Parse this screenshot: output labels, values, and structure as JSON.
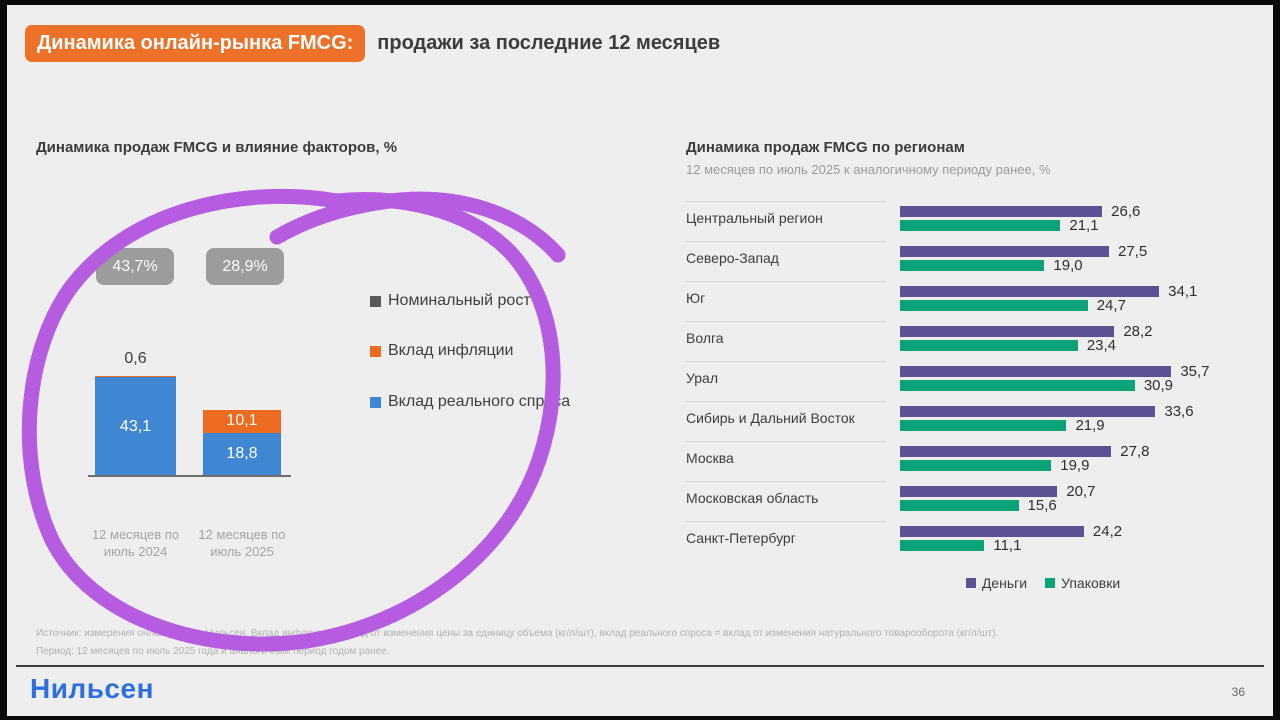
{
  "header": {
    "badge": "Динамика онлайн-рынка FMCG:",
    "rest": "продажи за последние 12 месяцев"
  },
  "left_chart": {
    "title": "Динамика продаж FMCG и влияние факторов, %",
    "totals": [
      "43,7%",
      "28,9%"
    ],
    "categories_display": [
      "12 месяцев по\nиюль 2024",
      "12 месяцев по\nиюль 2025"
    ],
    "legend": [
      {
        "label": "Номинальный рост",
        "color": "#595959"
      },
      {
        "label": "Вклад инфляции",
        "color": "#ed6a21"
      },
      {
        "label": "Вклад реального спроса",
        "color": "#3f87d2"
      }
    ]
  },
  "right_chart": {
    "title": "Динамика продаж FMCG по регионам",
    "subtitle": "12 месяцев по июль 2025 к аналогичному периоду ранее, %",
    "legend": [
      {
        "label": "Деньги",
        "color": "#5c5192"
      },
      {
        "label": "Упаковки",
        "color": "#0aa378"
      }
    ]
  },
  "footer": {
    "line1": "Источник: измерения онлайн-рынка Нильсен. Вклад инфляции = вклад от изменения цены за единицу объема (кг/л/шт), вклад реального спроса = вклад от изменения натурального товарооборота (кг/л/шт).",
    "line2": "Период: 12 месяцев по июль 2025 года и аналогичный период годом ранее.",
    "logo": "Нильсен",
    "page": "36"
  },
  "colors": {
    "accent_orange": "#ed7128",
    "bar_blue": "#3f87d2",
    "bar_orange": "#ed6a21",
    "bar_purple": "#5c5192",
    "bar_green": "#0aa378",
    "badge_gray": "#9c9c9c",
    "marker_purple": "#b55ce0",
    "logo_blue": "#2d6ee0"
  },
  "chart_data": [
    {
      "type": "bar",
      "subtype": "stacked-column",
      "title": "Динамика продаж FMCG и влияние факторов, %",
      "categories": [
        "12 месяцев по июль 2024",
        "12 месяцев по июль 2025"
      ],
      "series": [
        {
          "name": "Вклад реального спроса",
          "color": "#3f87d2",
          "values": [
            43.1,
            18.8
          ],
          "labels": [
            "43,1",
            "18,8"
          ]
        },
        {
          "name": "Вклад инфляции",
          "color": "#ed6a21",
          "values": [
            0.6,
            10.1
          ],
          "labels": [
            "0,6",
            "10,1"
          ]
        }
      ],
      "totals": {
        "name": "Номинальный рост",
        "values": [
          43.7,
          28.9
        ],
        "labels": [
          "43,7%",
          "28,9%"
        ]
      },
      "legend_position": "right",
      "ylim": [
        0,
        45
      ]
    },
    {
      "type": "bar",
      "subtype": "horizontal-grouped",
      "title": "Динамика продаж FMCG по регионам",
      "subtitle": "12 месяцев по июль 2025 к аналогичному периоду ранее, %",
      "categories": [
        "Центральный регион",
        "Северо-Запад",
        "Юг",
        "Волга",
        "Урал",
        "Сибирь и Дальний Восток",
        "Москва",
        "Московская область",
        "Санкт-Петербург"
      ],
      "series": [
        {
          "name": "Деньги",
          "color": "#5c5192",
          "values": [
            26.6,
            27.5,
            34.1,
            28.2,
            35.7,
            33.6,
            27.8,
            20.7,
            24.2
          ],
          "labels": [
            "26,6",
            "27,5",
            "34,1",
            "28,2",
            "35,7",
            "33,6",
            "27,8",
            "20,7",
            "24,2"
          ]
        },
        {
          "name": "Упаковки",
          "color": "#0aa378",
          "values": [
            21.1,
            19.0,
            24.7,
            23.4,
            30.9,
            21.9,
            19.9,
            15.6,
            11.1
          ],
          "labels": [
            "21,1",
            "19,0",
            "24,7",
            "23,4",
            "30,9",
            "21,9",
            "19,9",
            "15,6",
            "11,1"
          ]
        }
      ],
      "legend_position": "bottom",
      "xlim": [
        0,
        37
      ]
    }
  ]
}
